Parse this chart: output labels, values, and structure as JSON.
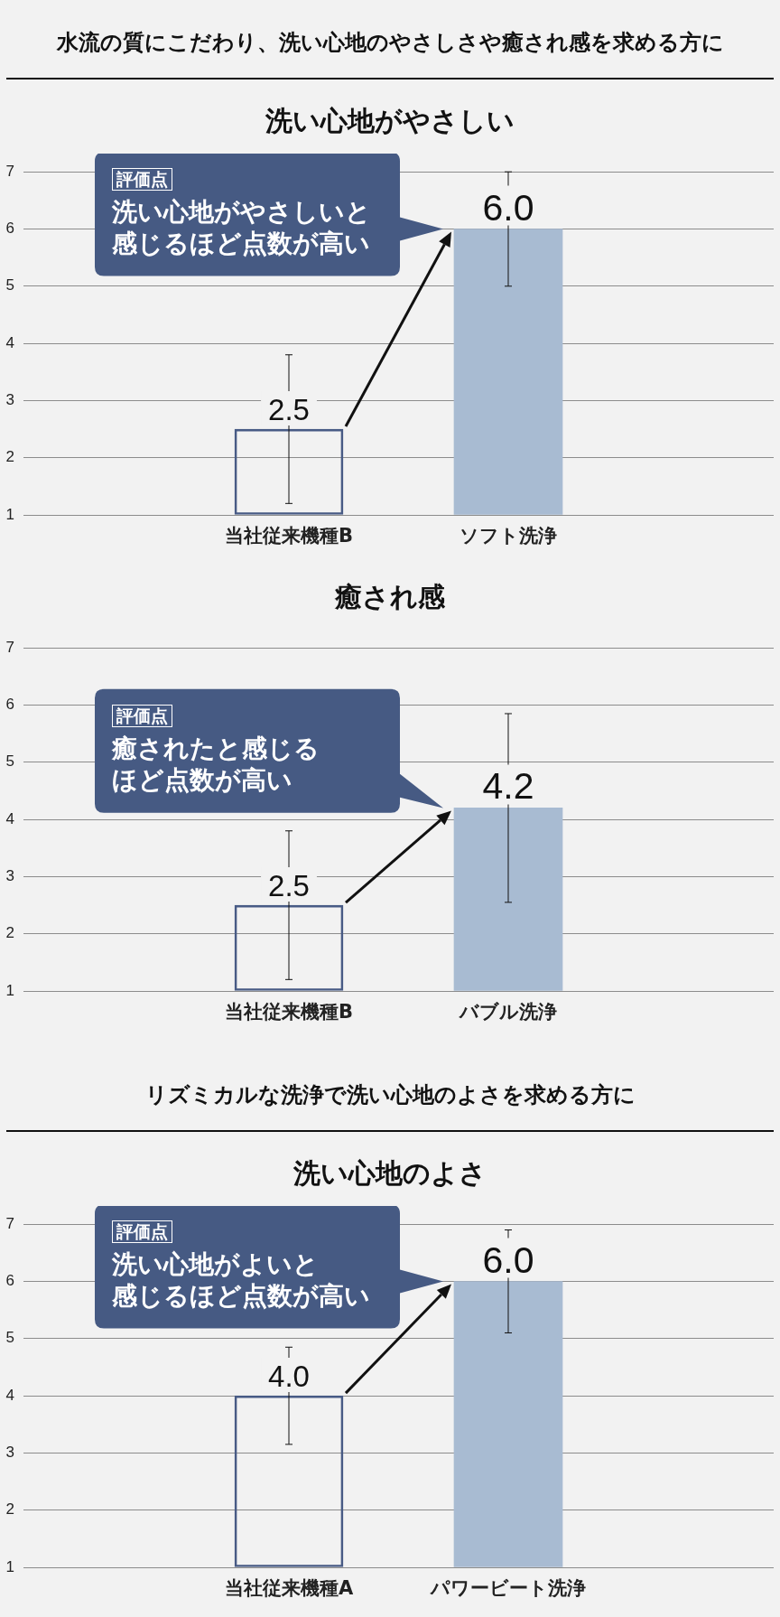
{
  "chart_data": [
    {
      "type": "other",
      "title": "水流の質にこだわり、洗い心地のやさしさや癒され感を求める方に"
    },
    {
      "type": "bar",
      "title": "洗い心地がやさしい",
      "categories": [
        "当社従来機種B",
        "ソフト洗浄"
      ],
      "values": [
        2.5,
        6.0
      ],
      "colors": [
        "#485b85",
        "#a8bbd2"
      ],
      "errors": [
        1.3,
        1.0
      ],
      "value_labels": [
        "2.5",
        "6.0"
      ],
      "ylim": [
        1,
        7
      ],
      "yticks": [
        1,
        2,
        3,
        4,
        5,
        6,
        7
      ],
      "grid": "y",
      "annotations": [
        "評価点",
        "洗い心地がやさしいと感じるほど点数が高い"
      ]
    },
    {
      "type": "bar",
      "title": "癒され感",
      "categories": [
        "当社従来機種B",
        "バブル洗浄"
      ],
      "values": [
        2.5,
        4.2
      ],
      "colors": [
        "#485b85",
        "#a8bbd2"
      ],
      "errors": [
        1.3,
        1.65
      ],
      "value_labels": [
        "2.5",
        "4.2"
      ],
      "ylim": [
        1,
        7
      ],
      "yticks": [
        1,
        2,
        3,
        4,
        5,
        6,
        7
      ],
      "grid": "y",
      "annotations": [
        "評価点",
        "癒されたと感じるほど点数が高い"
      ]
    },
    {
      "type": "other",
      "title": "リズミカルな洗浄で洗い心地のよさを求める方に"
    },
    {
      "type": "bar",
      "title": "洗い心地のよさ",
      "categories": [
        "当社従来機種A",
        "パワービート洗浄"
      ],
      "values": [
        4.0,
        6.0
      ],
      "colors": [
        "#485b85",
        "#a8bbd2"
      ],
      "errors": [
        0.85,
        0.9
      ],
      "value_labels": [
        "4.0",
        "6.0"
      ],
      "ylim": [
        1,
        7
      ],
      "yticks": [
        1,
        2,
        3,
        4,
        5,
        6,
        7
      ],
      "grid": "y",
      "annotations": [
        "評価点",
        "洗い心地がよいと感じるほど点数が高い"
      ]
    }
  ]
}
